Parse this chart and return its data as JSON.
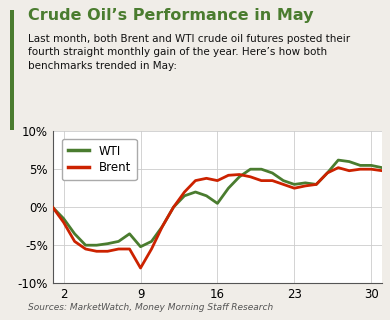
{
  "title": "Crude Oil’s Performance in May",
  "subtitle": "Last month, both Brent and WTI crude oil futures posted their\nfourth straight monthly gain of the year. Here’s how both\nbenchmarks trended in May:",
  "source": "Sources: MarketWatch, Money Morning Staff Research",
  "title_color": "#4a7c2f",
  "wti_color": "#4a7c2f",
  "brent_color": "#cc2200",
  "background_color": "#f0ede8",
  "chart_bg": "#ffffff",
  "x_ticks": [
    2,
    9,
    16,
    23,
    30
  ],
  "wti_x": [
    1,
    2,
    3,
    4,
    5,
    6,
    7,
    8,
    9,
    10,
    11,
    12,
    13,
    14,
    15,
    16,
    17,
    18,
    19,
    20,
    21,
    22,
    23,
    24,
    25,
    26,
    27,
    28,
    29,
    30,
    31
  ],
  "wti_y": [
    0.0,
    -1.5,
    -3.5,
    -5.0,
    -5.0,
    -4.8,
    -4.5,
    -3.5,
    -5.2,
    -4.5,
    -2.5,
    0.0,
    1.5,
    2.0,
    1.5,
    0.5,
    2.5,
    4.0,
    5.0,
    5.0,
    4.5,
    3.5,
    3.0,
    3.2,
    3.0,
    4.5,
    6.2,
    6.0,
    5.5,
    5.5,
    5.2
  ],
  "brent_x": [
    1,
    2,
    3,
    4,
    5,
    6,
    7,
    8,
    9,
    10,
    11,
    12,
    13,
    14,
    15,
    16,
    17,
    18,
    19,
    20,
    21,
    22,
    23,
    24,
    25,
    26,
    27,
    28,
    29,
    30,
    31
  ],
  "brent_y": [
    0.0,
    -2.0,
    -4.5,
    -5.5,
    -5.8,
    -5.8,
    -5.5,
    -5.5,
    -8.0,
    -5.5,
    -2.5,
    0.0,
    2.0,
    3.5,
    3.8,
    3.5,
    4.2,
    4.3,
    4.0,
    3.5,
    3.5,
    3.0,
    2.5,
    2.8,
    3.0,
    4.5,
    5.2,
    4.8,
    5.0,
    5.0,
    4.8
  ],
  "ylim": [
    -10,
    10
  ],
  "yticks": [
    -10,
    -5,
    0,
    5,
    10
  ],
  "xlim": [
    1,
    31
  ],
  "line_width": 2.0,
  "legend_wti": "WTI",
  "legend_brent": "Brent",
  "border_color": "#4a7c2f"
}
